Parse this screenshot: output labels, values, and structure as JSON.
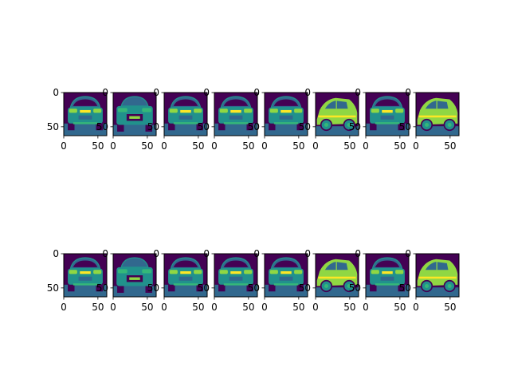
{
  "figure": {
    "rows": 2,
    "cols": 8,
    "colormap": "viridis",
    "image_size": [
      64,
      64
    ]
  },
  "chart_data": {
    "type": "heatmap",
    "description_note": "",
    "panels": [
      {
        "row": 0,
        "col": 0,
        "view": "rear",
        "xlim": [
          0,
          63
        ],
        "ylim": [
          63,
          0
        ],
        "xticks": [
          "0",
          "50"
        ],
        "yticks": [
          "0",
          "50"
        ]
      },
      {
        "row": 0,
        "col": 1,
        "view": "front",
        "xlim": [
          0,
          63
        ],
        "ylim": [
          63,
          0
        ],
        "xticks": [
          "0",
          "50"
        ],
        "yticks": [
          "0",
          "50"
        ]
      },
      {
        "row": 0,
        "col": 2,
        "view": "rear",
        "xlim": [
          0,
          63
        ],
        "ylim": [
          63,
          0
        ],
        "xticks": [
          "0",
          "50"
        ],
        "yticks": [
          "0",
          "50"
        ]
      },
      {
        "row": 0,
        "col": 3,
        "view": "rear",
        "xlim": [
          0,
          63
        ],
        "ylim": [
          63,
          0
        ],
        "xticks": [
          "0",
          "50"
        ],
        "yticks": [
          "0",
          "50"
        ]
      },
      {
        "row": 0,
        "col": 4,
        "view": "rear",
        "xlim": [
          0,
          63
        ],
        "ylim": [
          63,
          0
        ],
        "xticks": [
          "0",
          "50"
        ],
        "yticks": [
          "0",
          "50"
        ]
      },
      {
        "row": 0,
        "col": 5,
        "view": "side",
        "xlim": [
          0,
          63
        ],
        "ylim": [
          63,
          0
        ],
        "xticks": [
          "0",
          "50"
        ],
        "yticks": [
          "0",
          "50"
        ]
      },
      {
        "row": 0,
        "col": 6,
        "view": "rear",
        "xlim": [
          0,
          63
        ],
        "ylim": [
          63,
          0
        ],
        "xticks": [
          "0",
          "50"
        ],
        "yticks": [
          "0",
          "50"
        ]
      },
      {
        "row": 0,
        "col": 7,
        "view": "side",
        "xlim": [
          0,
          63
        ],
        "ylim": [
          63,
          0
        ],
        "xticks": [
          "0",
          "50"
        ],
        "yticks": [
          "0",
          "50"
        ]
      },
      {
        "row": 1,
        "col": 0,
        "view": "rear",
        "xlim": [
          0,
          63
        ],
        "ylim": [
          63,
          0
        ],
        "xticks": [
          "0",
          "50"
        ],
        "yticks": [
          "0",
          "50"
        ]
      },
      {
        "row": 1,
        "col": 1,
        "view": "front",
        "xlim": [
          0,
          63
        ],
        "ylim": [
          63,
          0
        ],
        "xticks": [
          "0",
          "50"
        ],
        "yticks": [
          "0",
          "50"
        ]
      },
      {
        "row": 1,
        "col": 2,
        "view": "rear",
        "xlim": [
          0,
          63
        ],
        "ylim": [
          63,
          0
        ],
        "xticks": [
          "0",
          "50"
        ],
        "yticks": [
          "0",
          "50"
        ]
      },
      {
        "row": 1,
        "col": 3,
        "view": "rear",
        "xlim": [
          0,
          63
        ],
        "ylim": [
          63,
          0
        ],
        "xticks": [
          "0",
          "50"
        ],
        "yticks": [
          "0",
          "50"
        ]
      },
      {
        "row": 1,
        "col": 4,
        "view": "rear",
        "xlim": [
          0,
          63
        ],
        "ylim": [
          63,
          0
        ],
        "xticks": [
          "0",
          "50"
        ],
        "yticks": [
          "0",
          "50"
        ]
      },
      {
        "row": 1,
        "col": 5,
        "view": "side",
        "xlim": [
          0,
          63
        ],
        "ylim": [
          63,
          0
        ],
        "xticks": [
          "0",
          "50"
        ],
        "yticks": [
          "0",
          "50"
        ]
      },
      {
        "row": 1,
        "col": 6,
        "view": "rear",
        "xlim": [
          0,
          63
        ],
        "ylim": [
          63,
          0
        ],
        "xticks": [
          "0",
          "50"
        ],
        "yticks": [
          "0",
          "50"
        ]
      },
      {
        "row": 1,
        "col": 7,
        "view": "side",
        "xlim": [
          0,
          63
        ],
        "ylim": [
          63,
          0
        ],
        "xticks": [
          "0",
          "50"
        ],
        "yticks": [
          "0",
          "50"
        ]
      }
    ]
  },
  "colors": {
    "bg": "#440154",
    "dark": "#31688e",
    "mid": "#21918c",
    "light": "#35b779",
    "bright": "#90d743",
    "yellow": "#fde725"
  }
}
